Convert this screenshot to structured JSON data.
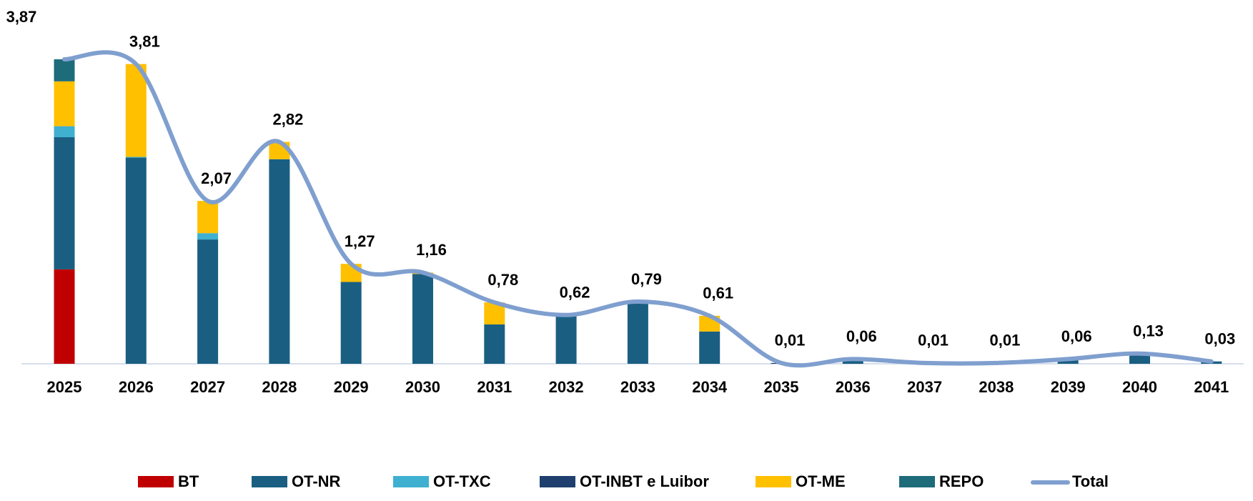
{
  "chart_data": {
    "type": "bar",
    "stacked": true,
    "categories": [
      "2025",
      "2026",
      "2027",
      "2028",
      "2029",
      "2030",
      "2031",
      "2032",
      "2033",
      "2034",
      "2035",
      "2036",
      "2037",
      "2038",
      "2039",
      "2040",
      "2041"
    ],
    "series": [
      {
        "name": "BT",
        "color": "#c00000",
        "values": [
          1.2,
          0,
          0,
          0,
          0,
          0,
          0,
          0,
          0,
          0,
          0,
          0,
          0,
          0,
          0,
          0,
          0
        ]
      },
      {
        "name": "OT-NR",
        "color": "#1a5f82",
        "values": [
          1.68,
          2.62,
          1.58,
          2.6,
          1.04,
          1.14,
          0.5,
          0.62,
          0.79,
          0.41,
          0,
          0.06,
          0,
          0,
          0.06,
          0.13,
          0.03
        ]
      },
      {
        "name": "OT-TXC",
        "color": "#3fb0d0",
        "values": [
          0.14,
          0.01,
          0.08,
          0,
          0,
          0,
          0,
          0,
          0,
          0,
          0,
          0,
          0,
          0,
          0,
          0,
          0
        ]
      },
      {
        "name": "OT-INBT e Luibor",
        "color": "#1f3f6e",
        "values": [
          0,
          0,
          0,
          0,
          0,
          0,
          0,
          0,
          0,
          0,
          0.01,
          0,
          0.01,
          0.01,
          0,
          0,
          0
        ]
      },
      {
        "name": "OT-ME",
        "color": "#ffc000",
        "values": [
          0.57,
          1.18,
          0.41,
          0.22,
          0.23,
          0.02,
          0.28,
          0,
          0,
          0.2,
          0,
          0,
          0,
          0,
          0,
          0,
          0
        ]
      },
      {
        "name": "REPO",
        "color": "#1e6b7a",
        "values": [
          0.28,
          0,
          0,
          0,
          0,
          0,
          0,
          0,
          0,
          0,
          0,
          0,
          0,
          0,
          0,
          0,
          0
        ]
      }
    ],
    "total": {
      "name": "Total",
      "type": "line",
      "color": "#7f9fcf",
      "values": [
        3.87,
        3.81,
        2.07,
        2.82,
        1.27,
        1.16,
        0.78,
        0.62,
        0.79,
        0.61,
        0.01,
        0.06,
        0.01,
        0.01,
        0.06,
        0.13,
        0.03
      ],
      "value_labels": [
        "3,87",
        "3,81",
        "2,07",
        "2,82",
        "1,27",
        "1,16",
        "0,78",
        "0,62",
        "0,79",
        "0,61",
        "0,01",
        "0,06",
        "0,01",
        "0,01",
        "0,06",
        "0,13",
        "0,03"
      ]
    },
    "legend": "bottom"
  }
}
